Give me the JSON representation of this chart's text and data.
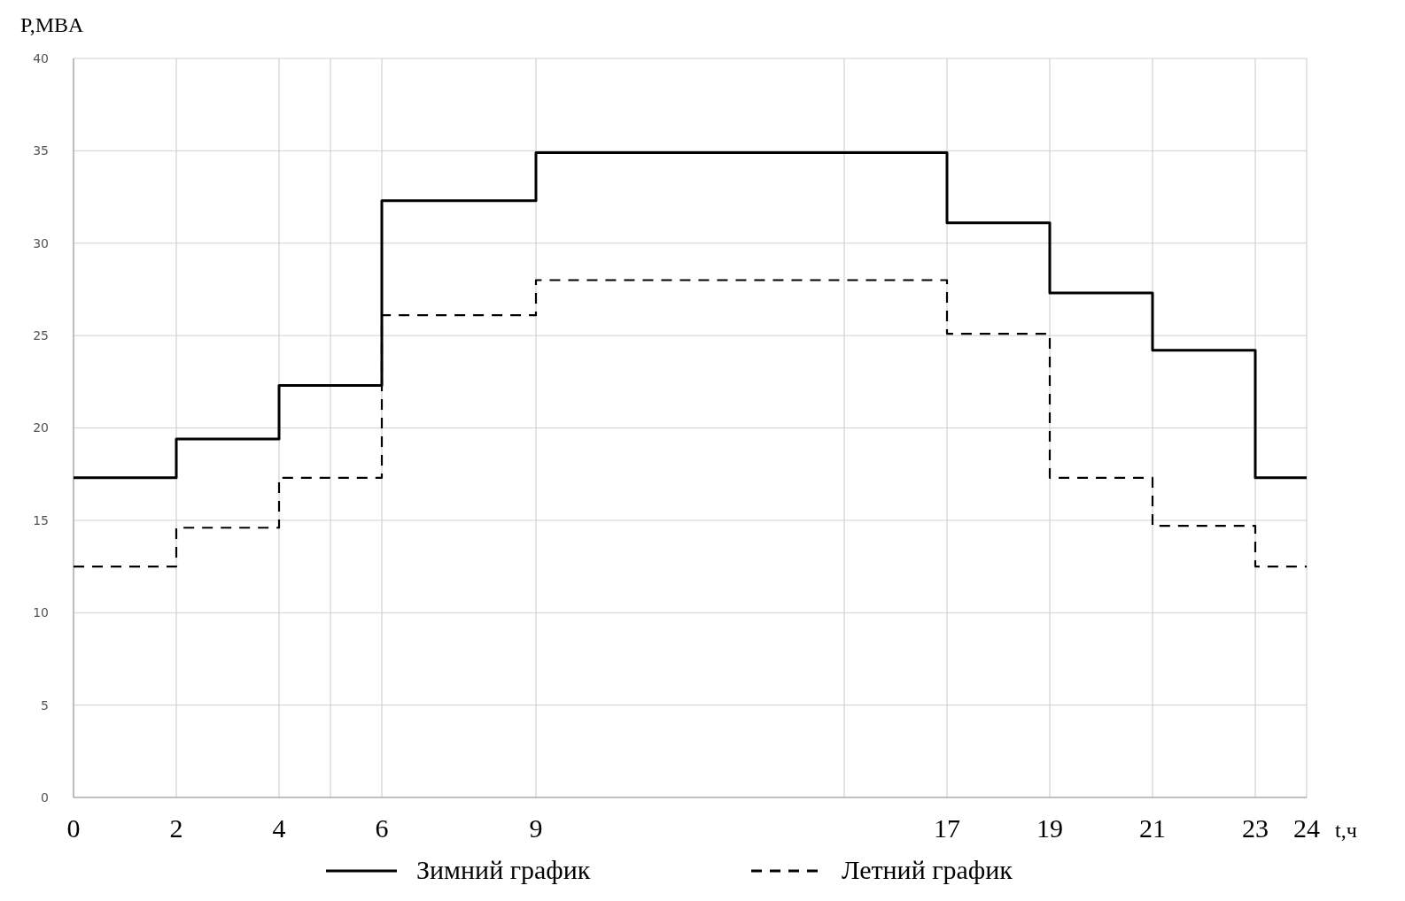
{
  "chart_data": {
    "type": "step",
    "xlabel": "t,ч",
    "ylabel": "P,MBA",
    "x": [
      0,
      2,
      4,
      6,
      9,
      17,
      19,
      21,
      23,
      24
    ],
    "series": [
      {
        "name": "Зимний график",
        "color": "#000000",
        "line_style": "solid",
        "values": [
          17.3,
          19.4,
          22.3,
          32.3,
          34.9,
          31.1,
          27.3,
          24.2,
          17.3,
          17.3
        ]
      },
      {
        "name": "Летний график",
        "color": "#000000",
        "line_style": "dashed",
        "values": [
          12.5,
          14.6,
          17.3,
          26.1,
          28.0,
          25.1,
          17.3,
          14.7,
          12.5,
          12.5
        ]
      }
    ],
    "xlim": [
      0,
      24
    ],
    "xticks": [
      0,
      2,
      4,
      {
        "value": 5,
        "label": null
      },
      6,
      9,
      {
        "value": 15,
        "label": null
      },
      17,
      19,
      21,
      23,
      24
    ],
    "ylim": [
      0,
      40
    ],
    "yticks": [
      0,
      5,
      10,
      15,
      20,
      25,
      30,
      35,
      40
    ],
    "grid": true,
    "legend": "bottom"
  }
}
